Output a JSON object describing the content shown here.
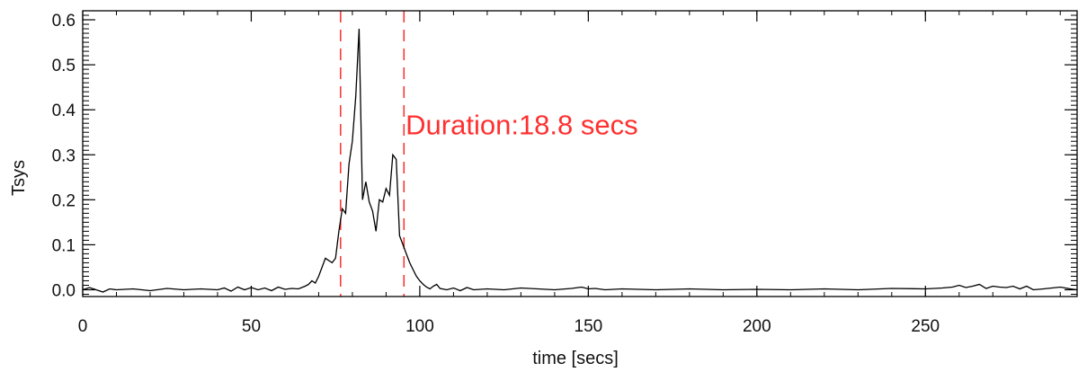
{
  "chart_data": {
    "type": "line",
    "xlabel": "time [secs]",
    "ylabel": "Tsys",
    "xlim": [
      0,
      295
    ],
    "ylim": [
      -0.015,
      0.62
    ],
    "xticks": [
      "0",
      "50",
      "100",
      "150",
      "200",
      "250"
    ],
    "xtick_values": [
      0,
      50,
      100,
      150,
      200,
      250
    ],
    "yticks": [
      "0.0",
      "0.1",
      "0.2",
      "0.3",
      "0.4",
      "0.5",
      "0.6"
    ],
    "ytick_values": [
      0.0,
      0.1,
      0.2,
      0.3,
      0.4,
      0.5,
      0.6
    ],
    "grid": false,
    "series": [
      {
        "color": "#000000",
        "x": [
          0,
          2,
          4,
          6,
          8,
          10,
          15,
          20,
          25,
          30,
          35,
          40,
          42,
          44,
          46,
          48,
          50,
          52,
          54,
          56,
          58,
          60,
          62,
          64,
          66,
          67,
          68,
          69,
          70,
          71,
          72,
          73,
          74,
          75,
          76,
          77,
          78,
          79,
          80,
          81,
          82,
          83,
          84,
          85,
          86,
          87,
          88,
          89,
          90,
          91,
          92,
          93,
          94,
          95,
          96,
          97,
          98,
          99,
          100,
          101,
          102,
          103,
          104,
          105,
          106,
          108,
          110,
          112,
          114,
          116,
          120,
          125,
          130,
          140,
          145,
          148,
          150,
          152,
          155,
          160,
          170,
          180,
          190,
          200,
          210,
          220,
          230,
          240,
          250,
          255,
          258,
          260,
          262,
          264,
          266,
          268,
          270,
          272,
          274,
          276,
          278,
          280,
          282,
          285,
          290,
          293,
          295
        ],
        "y": [
          0.0,
          0.005,
          0.0,
          -0.005,
          0.002,
          0.0,
          0.002,
          -0.002,
          0.003,
          0.0,
          0.002,
          0.0,
          0.004,
          -0.003,
          0.006,
          0.0,
          0.005,
          0.0,
          0.004,
          -0.002,
          0.006,
          0.001,
          0.003,
          0.002,
          0.008,
          0.012,
          0.02,
          0.015,
          0.03,
          0.05,
          0.07,
          0.065,
          0.06,
          0.07,
          0.13,
          0.18,
          0.17,
          0.28,
          0.33,
          0.43,
          0.58,
          0.2,
          0.24,
          0.195,
          0.175,
          0.13,
          0.2,
          0.195,
          0.225,
          0.21,
          0.3,
          0.29,
          0.12,
          0.1,
          0.08,
          0.06,
          0.045,
          0.03,
          0.02,
          0.012,
          0.006,
          0.002,
          0.008,
          0.012,
          0.003,
          0.0,
          0.004,
          -0.002,
          0.005,
          0.0,
          0.002,
          0.0,
          0.004,
          0.0,
          0.003,
          0.006,
          0.002,
          0.003,
          0.0,
          0.002,
          0.0,
          0.002,
          0.0,
          0.001,
          0.0,
          0.002,
          0.0,
          0.003,
          0.002,
          0.004,
          0.006,
          0.01,
          0.005,
          0.008,
          0.012,
          0.003,
          0.008,
          0.006,
          0.005,
          0.008,
          0.002,
          0.008,
          0.0,
          0.002,
          0.006,
          0.002,
          0.0
        ]
      }
    ],
    "markers": [
      {
        "x": 76.5,
        "color": "#ff2a2a",
        "style": "dashed"
      },
      {
        "x": 95.3,
        "color": "#ff2a2a",
        "style": "dashed"
      }
    ],
    "annotation": {
      "text": "Duration:18.8 secs",
      "color": "#ff3030",
      "x": 95.8,
      "y": 0.345
    }
  }
}
